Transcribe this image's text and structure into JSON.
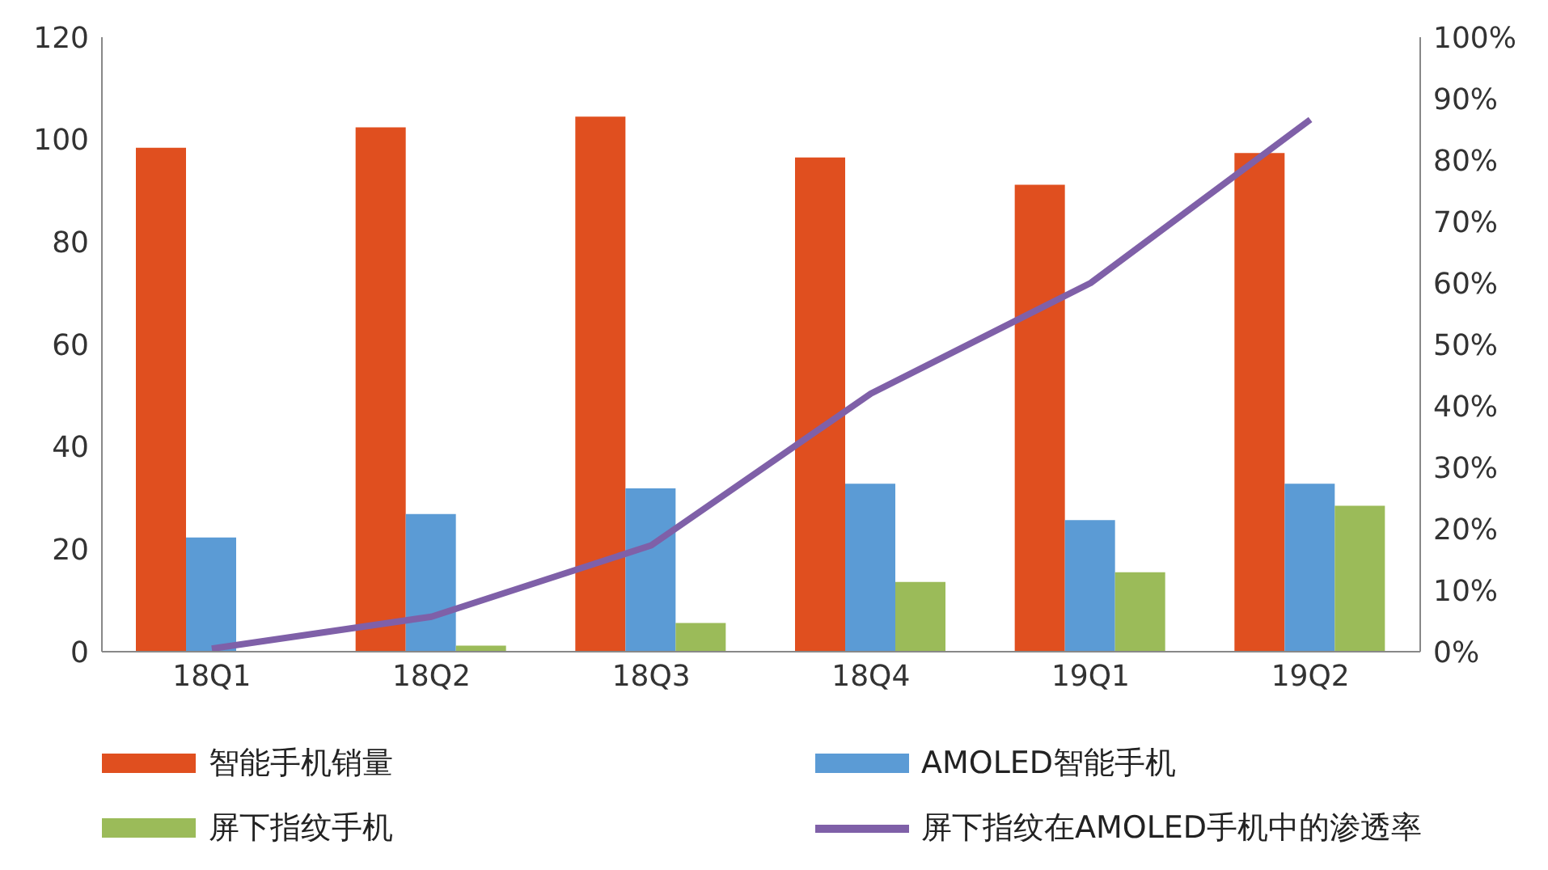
{
  "chart_data": {
    "type": "bar",
    "categories": [
      "18Q1",
      "18Q2",
      "18Q3",
      "18Q4",
      "19Q1",
      "19Q2"
    ],
    "series": [
      {
        "name": "智能手机销量",
        "color": "#e04f1f",
        "values": [
          98.4,
          102.4,
          104.5,
          96.5,
          91.2,
          97.4
        ]
      },
      {
        "name": "AMOLED智能手机",
        "color": "#5b9bd5",
        "values": [
          22.3,
          26.9,
          31.9,
          32.8,
          25.7,
          32.8
        ]
      },
      {
        "name": "屏下指纹手机",
        "color": "#9bbb59",
        "values": [
          0,
          1.2,
          5.6,
          13.6,
          15.5,
          28.5
        ]
      },
      {
        "name": "屏下指纹在AMOLED手机中的渗透率",
        "type": "line",
        "axis": "y2",
        "color": "#7f60a8",
        "values": [
          0.5,
          5.7,
          17.3,
          42,
          60,
          86.6
        ]
      }
    ],
    "ylim": [
      0,
      120
    ],
    "yticks": [
      0,
      20,
      40,
      60,
      80,
      100,
      120
    ],
    "y2lim": [
      0,
      100
    ],
    "y2ticks": [
      {
        "value": 0,
        "label": "0%"
      },
      {
        "value": 10,
        "label": "10%"
      },
      {
        "value": 20,
        "label": "20%"
      },
      {
        "value": 30,
        "label": "30%"
      },
      {
        "value": 40,
        "label": "40%"
      },
      {
        "value": 50,
        "label": "50%"
      },
      {
        "value": 60,
        "label": "60%"
      },
      {
        "value": 70,
        "label": "70%"
      },
      {
        "value": 80,
        "label": "80%"
      },
      {
        "value": 90,
        "label": "90%"
      },
      {
        "value": 100,
        "label": "100%"
      }
    ],
    "grid": false,
    "legend": "bottom",
    "marker": "none",
    "line_style": "solid"
  }
}
